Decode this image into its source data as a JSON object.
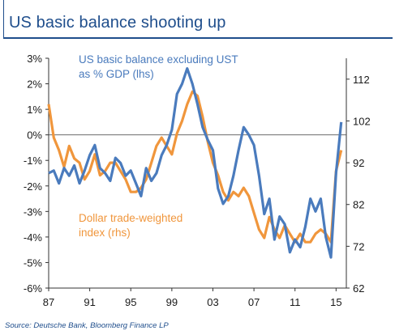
{
  "title": "US basic balance shooting up",
  "source": "Source: Deutsche Bank, Bloomberg Finance LP",
  "colors": {
    "blue_series": "#4a7bbd",
    "orange_series": "#f0963c",
    "brand": "#1f4e8c"
  },
  "chart_data": {
    "type": "line",
    "title": "US basic balance shooting up",
    "x_ticks": [
      "87",
      "91",
      "95",
      "99",
      "03",
      "07",
      "11",
      "15"
    ],
    "xlim": [
      1987,
      2016
    ],
    "left_axis": {
      "ticks": [
        "3%",
        "2%",
        "1%",
        "0%",
        "-1%",
        "-2%",
        "-3%",
        "-4%",
        "-5%",
        "-6%"
      ],
      "ylim": [
        -6,
        3
      ]
    },
    "right_axis": {
      "ticks": [
        "112",
        "102",
        "92",
        "82",
        "72",
        "62"
      ],
      "ylim": [
        62,
        117
      ]
    },
    "annotations": {
      "blue_line1": "US basic balance excluding UST",
      "blue_line2": "as % GDP (lhs)",
      "orange_line1": "Dollar trade-weighted",
      "orange_line2": "index (rhs)"
    },
    "series": [
      {
        "name": "US basic balance excluding UST as % GDP (lhs)",
        "axis": "left",
        "color": "#4a7bbd",
        "x": [
          1987.0,
          1987.5,
          1988.0,
          1988.5,
          1989.0,
          1989.5,
          1990.0,
          1990.5,
          1991.0,
          1991.5,
          1992.0,
          1992.5,
          1993.0,
          1993.5,
          1994.0,
          1994.5,
          1995.0,
          1995.5,
          1996.0,
          1996.5,
          1997.0,
          1997.5,
          1998.0,
          1998.5,
          1999.0,
          1999.5,
          2000.0,
          2000.5,
          2001.0,
          2001.5,
          2002.0,
          2002.5,
          2003.0,
          2003.5,
          2004.0,
          2004.5,
          2005.0,
          2005.5,
          2006.0,
          2006.5,
          2007.0,
          2007.5,
          2008.0,
          2008.5,
          2009.0,
          2009.5,
          2010.0,
          2010.5,
          2011.0,
          2011.5,
          2012.0,
          2012.5,
          2013.0,
          2013.5,
          2014.0,
          2014.5,
          2015.0,
          2015.5
        ],
        "y": [
          -1.5,
          -1.4,
          -1.9,
          -1.3,
          -1.6,
          -1.2,
          -1.9,
          -1.4,
          -0.8,
          -0.4,
          -1.3,
          -1.5,
          -1.8,
          -0.9,
          -1.1,
          -1.6,
          -1.4,
          -1.9,
          -2.4,
          -1.3,
          -1.8,
          -1.5,
          -0.8,
          -0.4,
          0.2,
          1.6,
          2.0,
          2.6,
          2.0,
          1.2,
          0.3,
          -0.2,
          -0.6,
          -2.1,
          -2.7,
          -2.4,
          -1.6,
          -0.6,
          0.3,
          0.0,
          -0.4,
          -1.6,
          -3.1,
          -2.5,
          -4.1,
          -3.2,
          -3.5,
          -4.6,
          -4.1,
          -4.4,
          -3.6,
          -2.5,
          -3.0,
          -2.5,
          -4.0,
          -4.8,
          -1.5,
          0.5
        ]
      },
      {
        "name": "Dollar trade-weighted index (rhs)",
        "axis": "right",
        "color": "#f0963c",
        "x": [
          1987.0,
          1987.5,
          1988.0,
          1988.5,
          1989.0,
          1989.5,
          1990.0,
          1990.5,
          1991.0,
          1991.5,
          1992.0,
          1992.5,
          1993.0,
          1993.5,
          1994.0,
          1994.5,
          1995.0,
          1995.5,
          1996.0,
          1996.5,
          1997.0,
          1997.5,
          1998.0,
          1998.5,
          1999.0,
          1999.5,
          2000.0,
          2000.5,
          2001.0,
          2001.5,
          2002.0,
          2002.5,
          2003.0,
          2003.5,
          2004.0,
          2004.5,
          2005.0,
          2005.5,
          2006.0,
          2006.5,
          2007.0,
          2007.5,
          2008.0,
          2008.5,
          2009.0,
          2009.5,
          2010.0,
          2010.5,
          2011.0,
          2011.5,
          2012.0,
          2012.5,
          2013.0,
          2013.5,
          2014.0,
          2014.5,
          2015.0,
          2015.5
        ],
        "y": [
          106,
          98,
          95,
          91,
          96,
          93,
          92,
          88,
          90,
          94,
          89,
          90,
          92,
          92,
          90,
          88,
          85,
          85,
          86,
          88,
          92,
          96,
          98,
          96,
          94,
          99,
          102,
          106,
          109,
          108,
          103,
          97,
          92,
          89,
          85,
          83,
          85,
          84,
          86,
          84,
          80,
          76,
          74,
          79,
          76,
          74,
          77,
          75,
          73,
          75,
          73,
          73,
          75,
          76,
          75,
          73,
          90,
          95
        ]
      }
    ]
  }
}
